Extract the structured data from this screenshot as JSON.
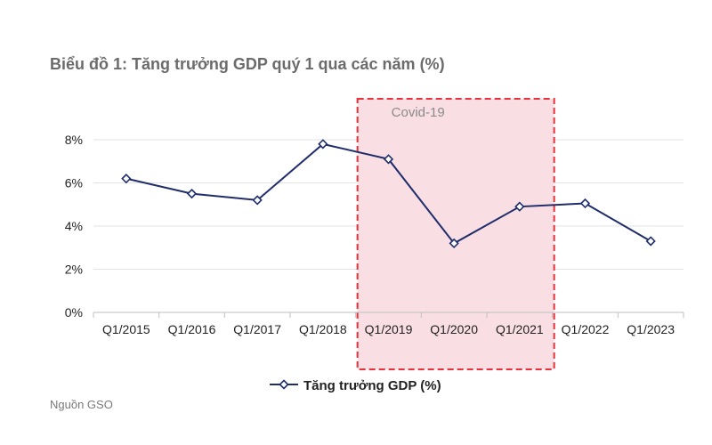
{
  "title": "Biểu đồ 1: Tăng trưởng GDP quý 1 qua các năm (%)",
  "source": "Nguồn GSO",
  "chart_data": {
    "type": "line",
    "title": "Biểu đồ 1: Tăng trưởng GDP quý 1 qua các năm (%)",
    "categories": [
      "Q1/2015",
      "Q1/2016",
      "Q1/2017",
      "Q1/2018",
      "Q1/2019",
      "Q1/2020",
      "Q1/2021",
      "Q1/2022",
      "Q1/2023"
    ],
    "series": [
      {
        "name": "Tăng trưởng GDP (%)",
        "values": [
          6.2,
          5.5,
          5.2,
          7.8,
          7.1,
          3.2,
          4.9,
          5.05,
          3.3
        ],
        "color": "#1f2d6b",
        "marker": "diamond"
      }
    ],
    "ylim": [
      0,
      8
    ],
    "yticks": [
      "0%",
      "2%",
      "4%",
      "6%",
      "8%"
    ],
    "grid": true,
    "legend": "bottom",
    "annotation": {
      "label": "Covid-19",
      "from": "Q1/2019",
      "to": "Q1/2021",
      "style": "dashed red box, pink fill"
    }
  }
}
